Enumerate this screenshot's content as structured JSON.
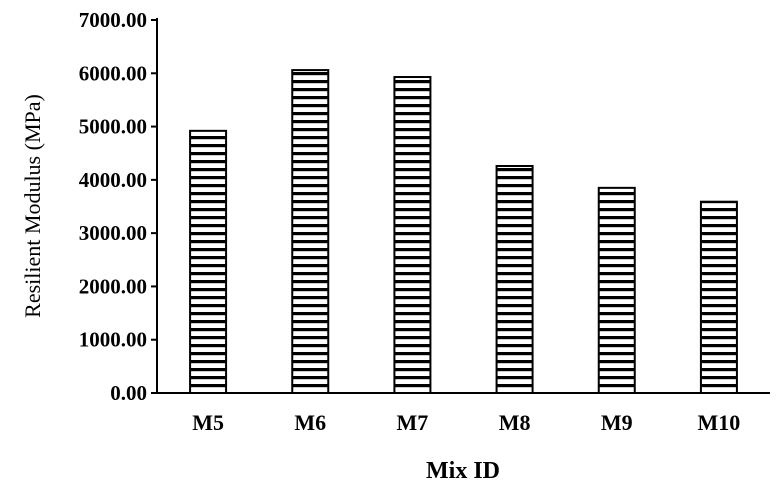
{
  "chart_data": {
    "type": "bar",
    "title": "",
    "xlabel": "Mix ID",
    "ylabel": "Resilient Modulus (MPa)",
    "categories": [
      "M5",
      "M6",
      "M7",
      "M8",
      "M9",
      "M10"
    ],
    "values": [
      4920,
      6060,
      5930,
      4260,
      3850,
      3590
    ],
    "ylim": [
      0,
      7000
    ],
    "yticks": [
      "0.00",
      "1000.00",
      "2000.00",
      "3000.00",
      "4000.00",
      "5000.00",
      "6000.00",
      "7000.00"
    ],
    "grid": false,
    "legend": "none",
    "bar_fill": "horizontal-stripes",
    "colors": {
      "bar_stroke": "#000000",
      "bar_stripe": "#000000",
      "background": "#ffffff"
    }
  }
}
